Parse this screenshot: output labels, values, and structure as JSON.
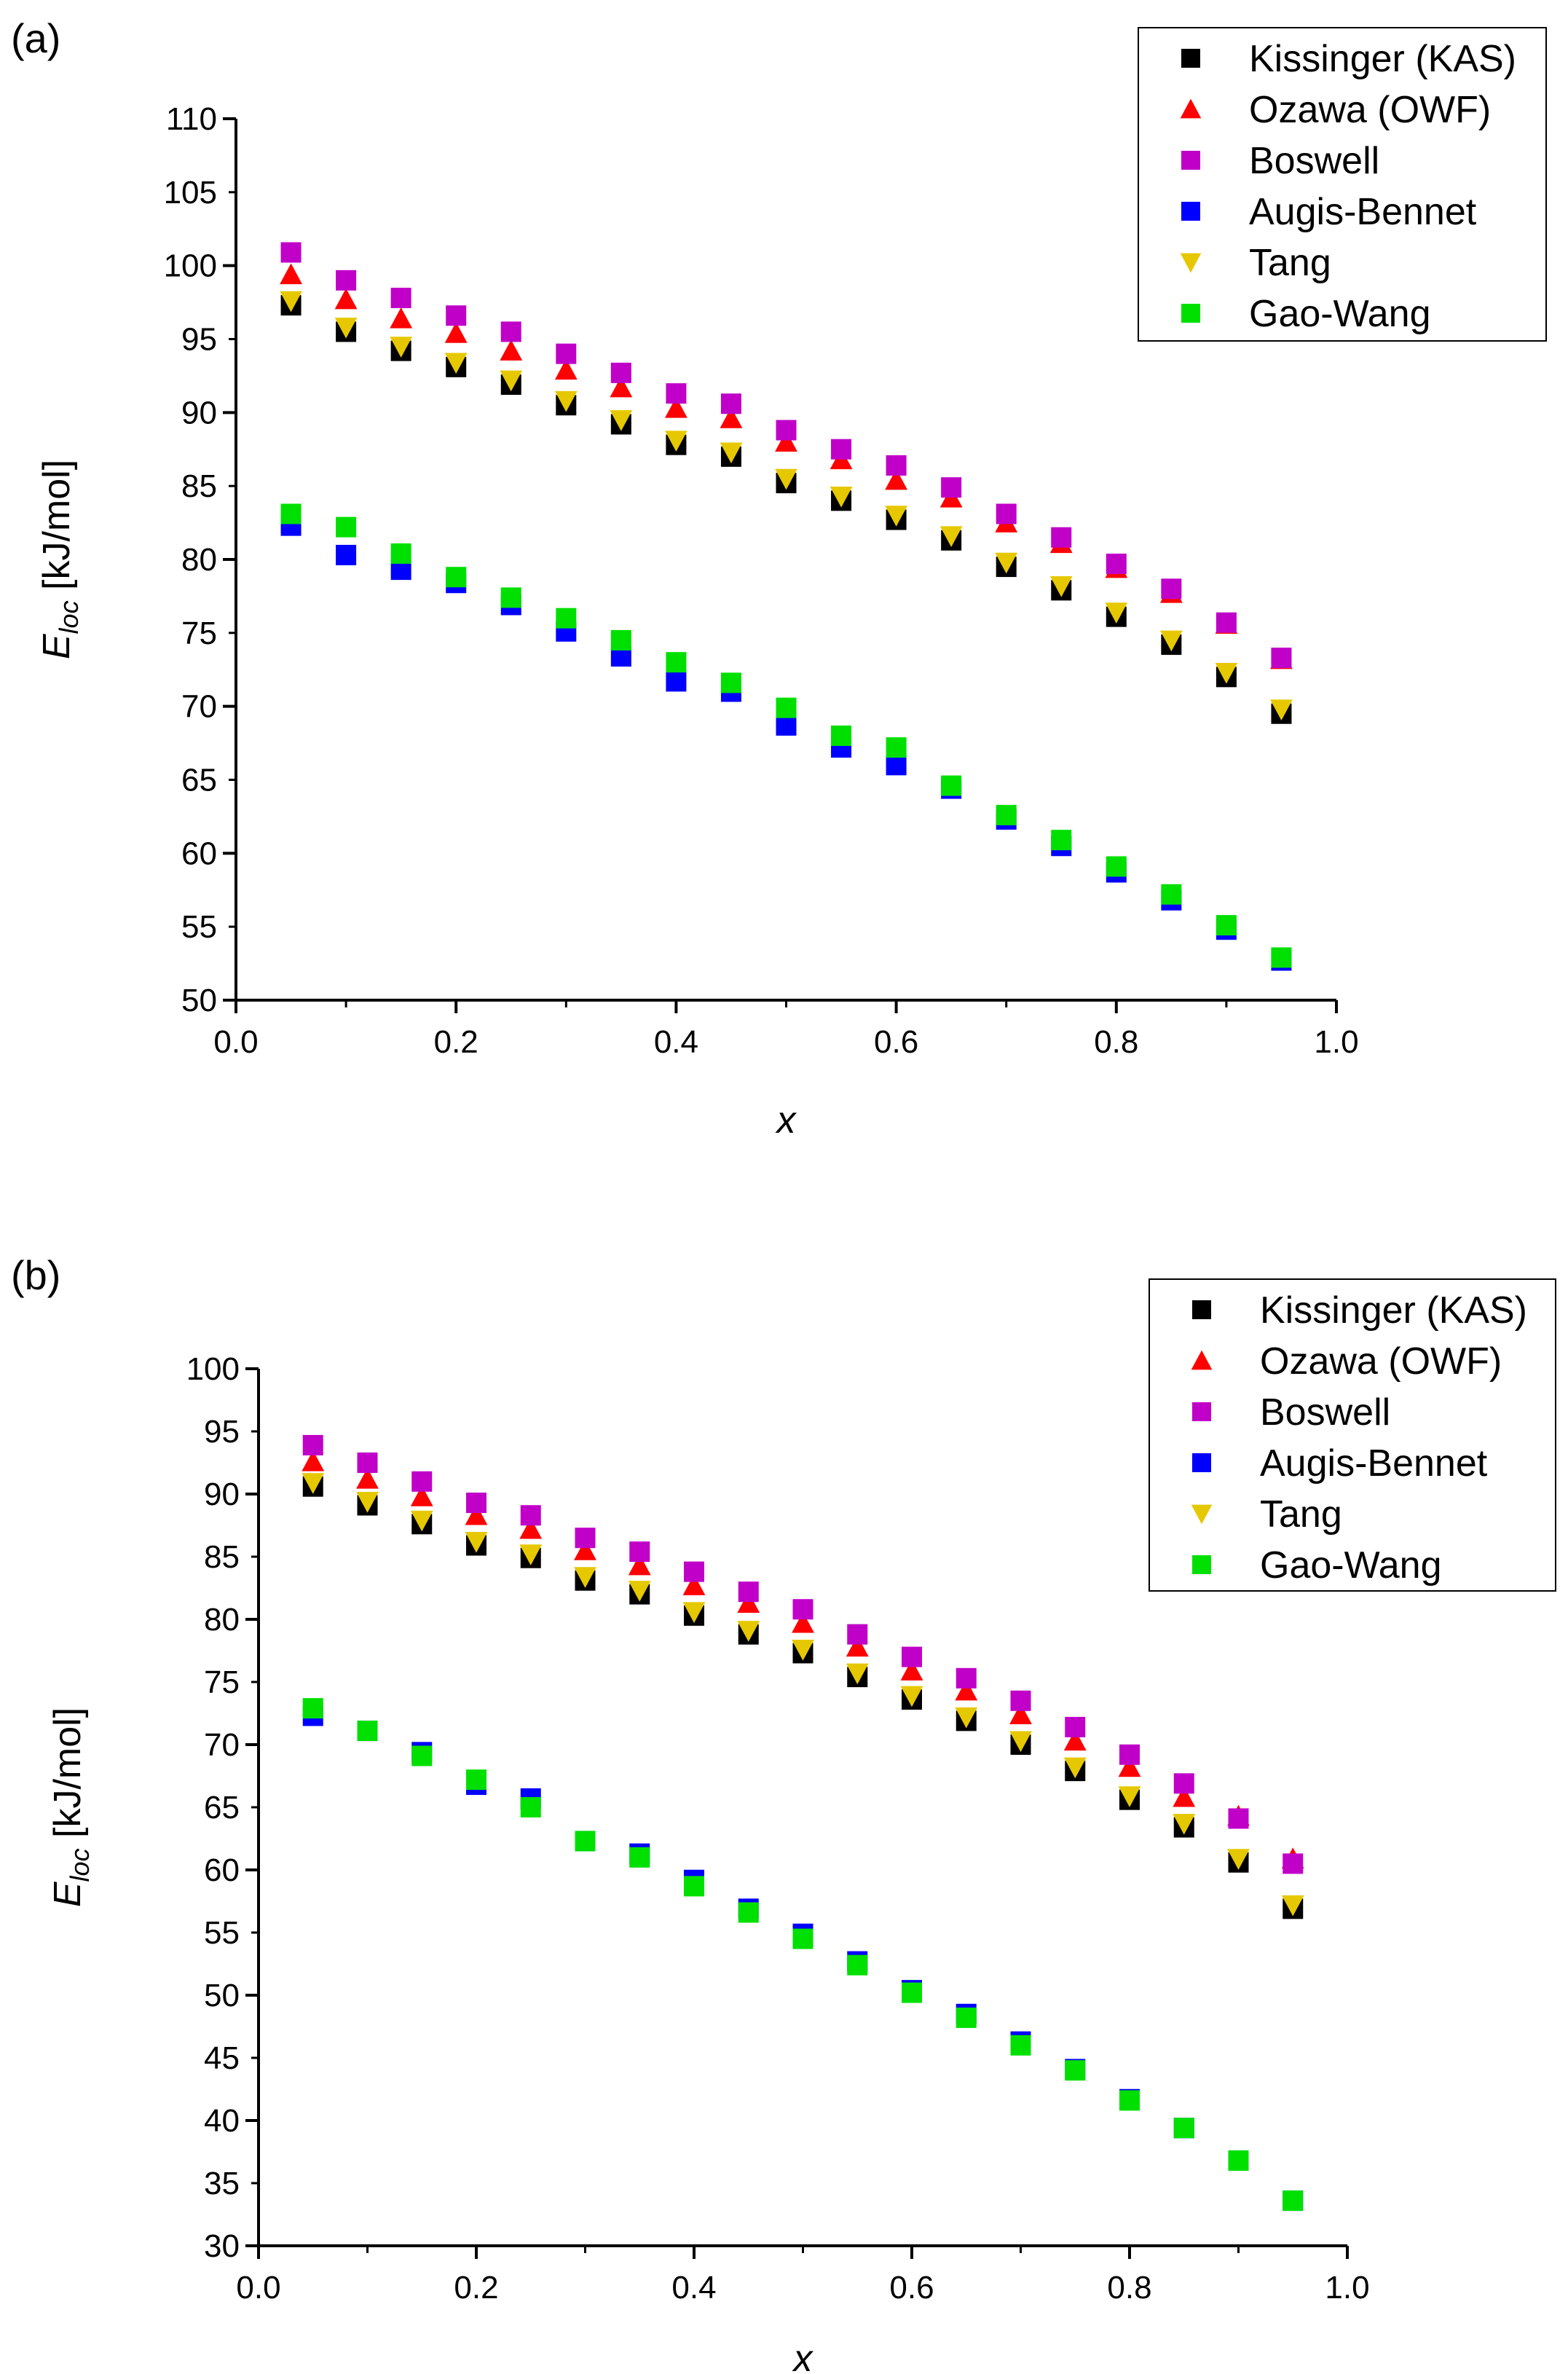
{
  "chart_data": [
    {
      "panel_label": "(a)",
      "type": "scatter",
      "xlabel": "x",
      "ylabel_main": "E",
      "ylabel_sub": "loc",
      "ylabel_unit": " [kJ/mol]",
      "xlim": [
        0.0,
        1.0
      ],
      "ylim": [
        50,
        110
      ],
      "xticks": [
        0.0,
        0.2,
        0.4,
        0.6,
        0.8,
        1.0
      ],
      "xtick_labels": [
        "0.0",
        "0.2",
        "0.4",
        "0.6",
        "0.8",
        "1.0"
      ],
      "yticks": [
        50,
        55,
        60,
        65,
        70,
        75,
        80,
        85,
        90,
        95,
        100,
        105,
        110
      ],
      "ytick_labels": [
        "50",
        "55",
        "60",
        "65",
        "70",
        "75",
        "80",
        "85",
        "90",
        "95",
        "100",
        "105",
        "110"
      ],
      "legend_position": "top-right",
      "x": [
        0.05,
        0.1,
        0.15,
        0.2,
        0.25,
        0.3,
        0.35,
        0.4,
        0.45,
        0.5,
        0.55,
        0.6,
        0.65,
        0.7,
        0.75,
        0.8,
        0.85,
        0.9,
        0.95
      ],
      "series": [
        {
          "name": "Kissinger (KAS)",
          "marker": "square",
          "color": "#000000",
          "values": [
            97.3,
            95.5,
            94.2,
            93.1,
            91.9,
            90.5,
            89.2,
            87.8,
            87.0,
            85.2,
            84.0,
            82.7,
            81.3,
            79.5,
            77.9,
            76.1,
            74.2,
            72.0,
            69.5
          ]
        },
        {
          "name": "Ozawa (OWF)",
          "marker": "triangle-up",
          "color": "#ff0000",
          "values": [
            99.4,
            97.7,
            96.4,
            95.4,
            94.2,
            92.9,
            91.7,
            90.3,
            89.6,
            88.0,
            86.8,
            85.4,
            84.2,
            82.5,
            81.1,
            79.4,
            77.7,
            75.6,
            73.2
          ]
        },
        {
          "name": "Boswell",
          "marker": "square",
          "color": "#c000c8",
          "values": [
            100.9,
            99.0,
            97.8,
            96.6,
            95.5,
            94.0,
            92.7,
            91.3,
            90.6,
            88.8,
            87.5,
            86.4,
            84.9,
            83.1,
            81.5,
            79.7,
            78.0,
            75.7,
            73.3
          ]
        },
        {
          "name": "Augis-Bennet",
          "marker": "square",
          "color": "#0000ff",
          "values": [
            82.3,
            80.3,
            79.3,
            78.4,
            76.9,
            75.1,
            73.4,
            71.7,
            71.0,
            68.7,
            67.2,
            66.0,
            64.4,
            62.3,
            60.5,
            58.7,
            56.8,
            54.8,
            52.7
          ]
        },
        {
          "name": "Tang",
          "marker": "triangle-down",
          "color": "#e6c800",
          "values": [
            97.6,
            95.8,
            94.5,
            93.4,
            92.2,
            90.8,
            89.5,
            88.1,
            87.3,
            85.5,
            84.3,
            83.0,
            81.6,
            79.8,
            78.2,
            76.4,
            74.5,
            72.3,
            69.8
          ]
        },
        {
          "name": "Gao-Wang",
          "marker": "square",
          "color": "#00e000",
          "values": [
            83.1,
            82.2,
            80.4,
            78.8,
            77.4,
            76.0,
            74.5,
            73.0,
            71.6,
            69.9,
            68.0,
            67.2,
            64.6,
            62.6,
            60.9,
            59.1,
            57.2,
            55.1,
            52.9
          ]
        }
      ]
    },
    {
      "panel_label": "(b)",
      "type": "scatter",
      "xlabel": "x",
      "ylabel_main": "E",
      "ylabel_sub": "loc",
      "ylabel_unit": " [kJ/mol]",
      "xlim": [
        0.0,
        1.0
      ],
      "ylim": [
        30,
        100
      ],
      "xticks": [
        0.0,
        0.2,
        0.4,
        0.6,
        0.8,
        1.0
      ],
      "xtick_labels": [
        "0.0",
        "0.2",
        "0.4",
        "0.6",
        "0.8",
        "1.0"
      ],
      "yticks": [
        30,
        35,
        40,
        45,
        50,
        55,
        60,
        65,
        70,
        75,
        80,
        85,
        90,
        95,
        100
      ],
      "ytick_labels": [
        "30",
        "35",
        "40",
        "45",
        "50",
        "55",
        "60",
        "65",
        "70",
        "75",
        "80",
        "85",
        "90",
        "95",
        "100"
      ],
      "legend_position": "top-right",
      "x": [
        0.05,
        0.1,
        0.15,
        0.2,
        0.25,
        0.3,
        0.35,
        0.4,
        0.45,
        0.5,
        0.55,
        0.6,
        0.65,
        0.7,
        0.75,
        0.8,
        0.85,
        0.9,
        0.95
      ],
      "series": [
        {
          "name": "Kissinger (KAS)",
          "marker": "square",
          "color": "#000000",
          "values": [
            90.6,
            89.1,
            87.6,
            85.9,
            84.9,
            83.1,
            82.0,
            80.3,
            78.8,
            77.3,
            75.4,
            73.6,
            71.9,
            70.0,
            67.9,
            65.6,
            63.4,
            60.6,
            56.9
          ]
        },
        {
          "name": "Ozawa (OWF)",
          "marker": "triangle-up",
          "color": "#ff0000",
          "values": [
            92.6,
            91.2,
            89.8,
            88.3,
            87.2,
            85.5,
            84.3,
            82.7,
            81.3,
            79.7,
            77.8,
            75.9,
            74.3,
            72.4,
            70.3,
            68.2,
            65.8,
            64.3,
            60.9
          ]
        },
        {
          "name": "Boswell",
          "marker": "square",
          "color": "#c000c8",
          "values": [
            93.9,
            92.5,
            91.0,
            89.3,
            88.3,
            86.5,
            85.4,
            83.8,
            82.2,
            80.8,
            78.8,
            77.0,
            75.3,
            73.5,
            71.4,
            69.2,
            66.9,
            64.1,
            60.5
          ]
        },
        {
          "name": "Augis-Bennet",
          "marker": "square",
          "color": "#0000ff",
          "values": [
            72.3,
            71.1,
            69.4,
            66.8,
            65.7,
            62.3,
            61.3,
            59.2,
            56.9,
            54.9,
            52.7,
            50.4,
            48.5,
            46.3,
            44.1,
            41.7,
            39.4,
            36.8,
            33.6
          ]
        },
        {
          "name": "Tang",
          "marker": "triangle-down",
          "color": "#e6c800",
          "values": [
            90.9,
            89.4,
            87.9,
            86.2,
            85.2,
            83.4,
            82.3,
            80.6,
            79.1,
            77.6,
            75.7,
            73.9,
            72.2,
            70.3,
            68.2,
            65.9,
            63.7,
            60.9,
            57.2
          ]
        },
        {
          "name": "Gao-Wang",
          "marker": "square",
          "color": "#00e000",
          "values": [
            72.9,
            71.1,
            69.1,
            67.2,
            65.0,
            62.3,
            61.0,
            58.7,
            56.6,
            54.5,
            52.4,
            50.2,
            48.2,
            46.0,
            44.0,
            41.6,
            39.4,
            36.8,
            33.6
          ]
        }
      ]
    }
  ]
}
